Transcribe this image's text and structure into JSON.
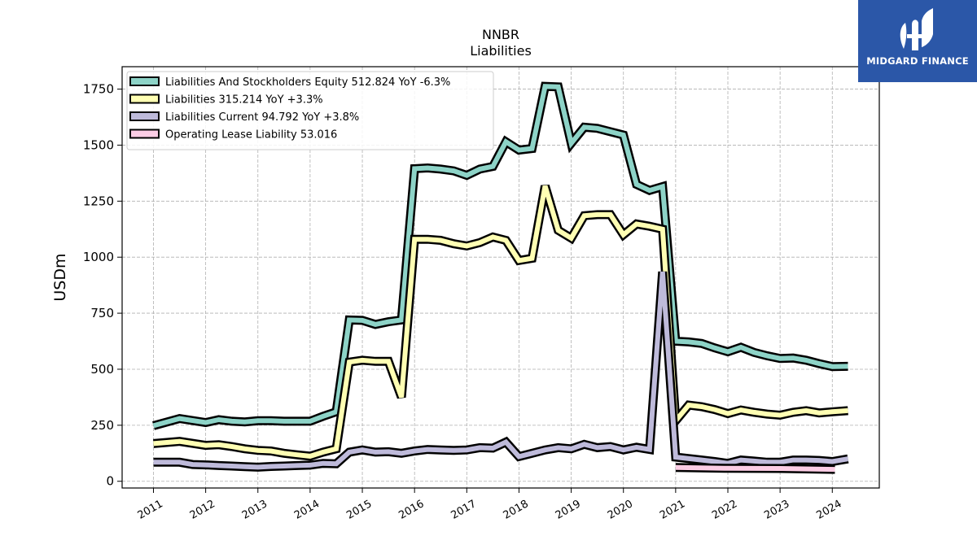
{
  "chart_data": {
    "type": "line",
    "title": "NNBR",
    "subtitle": "Liabilities",
    "ylabel": "USDm",
    "ylim": [
      -30,
      1850
    ],
    "xlim": [
      2010.4,
      2024.9
    ],
    "yticks": [
      0,
      250,
      500,
      750,
      1000,
      1250,
      1500,
      1750
    ],
    "ytick_labels": [
      "0",
      "250",
      "500",
      "750",
      "1000",
      "1250",
      "1500",
      "1750"
    ],
    "xticks": [
      2011,
      2012,
      2013,
      2014,
      2015,
      2016,
      2017,
      2018,
      2019,
      2020,
      2021,
      2022,
      2023,
      2024
    ],
    "xtick_labels": [
      "2011",
      "2012",
      "2013",
      "2014",
      "2015",
      "2016",
      "2017",
      "2018",
      "2019",
      "2020",
      "2021",
      "2022",
      "2023",
      "2024"
    ],
    "grid": true,
    "legend_position": "top-left",
    "series": [
      {
        "name": "Liabilities And Stockholders Equity  512.824 YoY -6.3%",
        "color": "#8dd3c7",
        "x": [
          2011.0,
          2011.5,
          2012.0,
          2012.25,
          2012.5,
          2012.75,
          2013.0,
          2013.25,
          2013.5,
          2013.75,
          2014.0,
          2014.25,
          2014.5,
          2014.75,
          2015.0,
          2015.25,
          2015.5,
          2015.75,
          2016.0,
          2016.25,
          2016.5,
          2016.75,
          2017.0,
          2017.25,
          2017.5,
          2017.75,
          2018.0,
          2018.25,
          2018.5,
          2018.75,
          2019.0,
          2019.25,
          2019.5,
          2019.75,
          2020.0,
          2020.25,
          2020.5,
          2020.75,
          2021.0,
          2021.25,
          2021.5,
          2021.75,
          2022.0,
          2022.25,
          2022.5,
          2022.75,
          2023.0,
          2023.25,
          2023.5,
          2023.75,
          2024.0,
          2024.3
        ],
        "values": [
          248,
          280,
          262,
          275,
          268,
          265,
          270,
          270,
          268,
          268,
          268,
          290,
          310,
          720,
          718,
          700,
          712,
          720,
          1395,
          1398,
          1393,
          1385,
          1365,
          1393,
          1405,
          1515,
          1478,
          1485,
          1762,
          1760,
          1508,
          1580,
          1575,
          1560,
          1545,
          1325,
          1298,
          1315,
          625,
          622,
          615,
          595,
          578,
          598,
          575,
          560,
          548,
          550,
          540,
          525,
          512,
          513
        ]
      },
      {
        "name": "Liabilities  315.214 YoY +3.3%",
        "color": "#ffffb3",
        "x": [
          2011.0,
          2011.5,
          2012.0,
          2012.25,
          2012.5,
          2012.75,
          2013.0,
          2013.25,
          2013.5,
          2013.75,
          2014.0,
          2014.25,
          2014.5,
          2014.75,
          2015.0,
          2015.25,
          2015.5,
          2015.75,
          2016.0,
          2016.25,
          2016.5,
          2016.75,
          2017.0,
          2017.25,
          2017.5,
          2017.75,
          2018.0,
          2018.25,
          2018.5,
          2018.75,
          2019.0,
          2019.25,
          2019.5,
          2019.75,
          2020.0,
          2020.25,
          2020.5,
          2020.75,
          2021.0,
          2021.25,
          2021.5,
          2021.75,
          2022.0,
          2022.25,
          2022.5,
          2022.75,
          2023.0,
          2023.25,
          2023.5,
          2023.75,
          2024.0,
          2024.3
        ],
        "values": [
          168,
          178,
          160,
          163,
          155,
          145,
          138,
          135,
          125,
          118,
          112,
          130,
          145,
          532,
          540,
          535,
          535,
          375,
          1080,
          1080,
          1075,
          1060,
          1050,
          1065,
          1090,
          1075,
          985,
          995,
          1318,
          1120,
          1085,
          1185,
          1190,
          1190,
          1100,
          1148,
          1138,
          1125,
          270,
          340,
          333,
          320,
          302,
          318,
          308,
          300,
          295,
          308,
          315,
          305,
          310,
          315
        ]
      },
      {
        "name": "Liabilities Current  94.792 YoY +3.8%",
        "color": "#bebada",
        "x": [
          2011.0,
          2011.5,
          2011.75,
          2012.0,
          2012.25,
          2012.5,
          2012.75,
          2013.0,
          2013.25,
          2013.5,
          2013.75,
          2014.0,
          2014.25,
          2014.5,
          2014.75,
          2015.0,
          2015.25,
          2015.5,
          2015.75,
          2016.0,
          2016.25,
          2016.5,
          2016.75,
          2017.0,
          2017.25,
          2017.5,
          2017.75,
          2018.0,
          2018.25,
          2018.5,
          2018.75,
          2019.0,
          2019.25,
          2019.5,
          2019.75,
          2020.0,
          2020.25,
          2020.5,
          2020.75,
          2021.0,
          2021.5,
          2021.75,
          2022.0,
          2022.25,
          2022.5,
          2022.75,
          2023.0,
          2023.25,
          2023.5,
          2023.75,
          2024.0,
          2024.3
        ],
        "values": [
          85,
          85,
          75,
          73,
          70,
          68,
          65,
          63,
          66,
          68,
          70,
          72,
          80,
          78,
          130,
          140,
          130,
          132,
          125,
          135,
          142,
          140,
          138,
          140,
          150,
          148,
          175,
          110,
          125,
          140,
          150,
          145,
          165,
          150,
          155,
          140,
          152,
          142,
          935,
          108,
          95,
          88,
          80,
          95,
          90,
          85,
          85,
          95,
          95,
          93,
          88,
          100
        ]
      },
      {
        "name": "Operating Lease Liability  53.016",
        "color": "#fccde5",
        "x": [
          2021.0,
          2022.0,
          2023.0,
          2024.05
        ],
        "values": [
          62,
          58,
          57,
          53
        ]
      }
    ]
  },
  "logo": {
    "text": "MIDGARD FINANCE"
  }
}
